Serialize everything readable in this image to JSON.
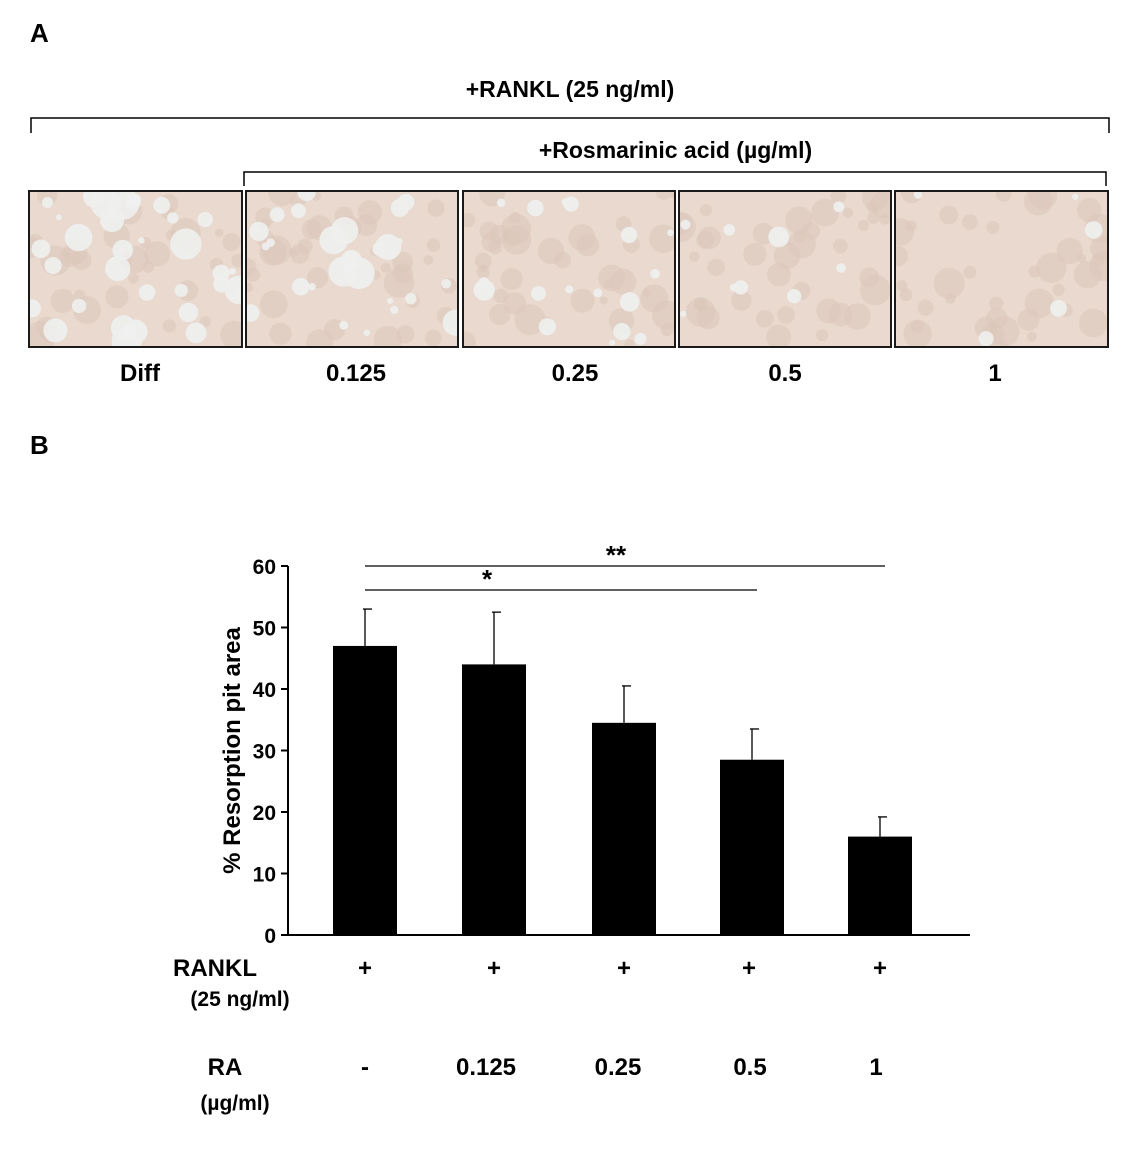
{
  "panel_a": {
    "letter": "A",
    "outer_bracket_label": "+RANKL (25 ng/ml)",
    "inner_bracket_label": "+Rosmarinic acid (µg/ml)",
    "images": [
      {
        "label": "Diff",
        "density": 0.55
      },
      {
        "label": "0.125",
        "density": 0.45
      },
      {
        "label": "0.25",
        "density": 0.28
      },
      {
        "label": "0.5",
        "density": 0.16
      },
      {
        "label": "1",
        "density": 0.08
      }
    ],
    "colors": {
      "background": "#e9d9cf",
      "pit": "#eef0ee",
      "tint": "#dcc6ba"
    }
  },
  "panel_b": {
    "letter": "B",
    "row1_label": "RANKL",
    "row1_sublabel": "(25 ng/ml)",
    "row1_values": [
      "+",
      "+",
      "+",
      "+",
      "+"
    ],
    "row2_label": "RA",
    "row2_sublabel": "(µg/ml)",
    "row2_values": [
      "-",
      "0.125",
      "0.25",
      "0.5",
      "1"
    ]
  },
  "chart_data": {
    "type": "bar",
    "ylabel": "% Resorption pit area",
    "xlabel": "",
    "ylim": [
      0,
      60
    ],
    "yticks": [
      0,
      10,
      20,
      30,
      40,
      50,
      60
    ],
    "categories": [
      "-",
      "0.125",
      "0.25",
      "0.5",
      "1"
    ],
    "values": [
      47,
      44,
      34.5,
      28.5,
      16
    ],
    "errors": [
      6,
      8.5,
      6,
      5,
      3.2
    ],
    "bar_color": "#000000",
    "significance": [
      {
        "from": 0,
        "to": 3,
        "label": "*"
      },
      {
        "from": 0,
        "to": 4,
        "label": "**"
      }
    ]
  }
}
